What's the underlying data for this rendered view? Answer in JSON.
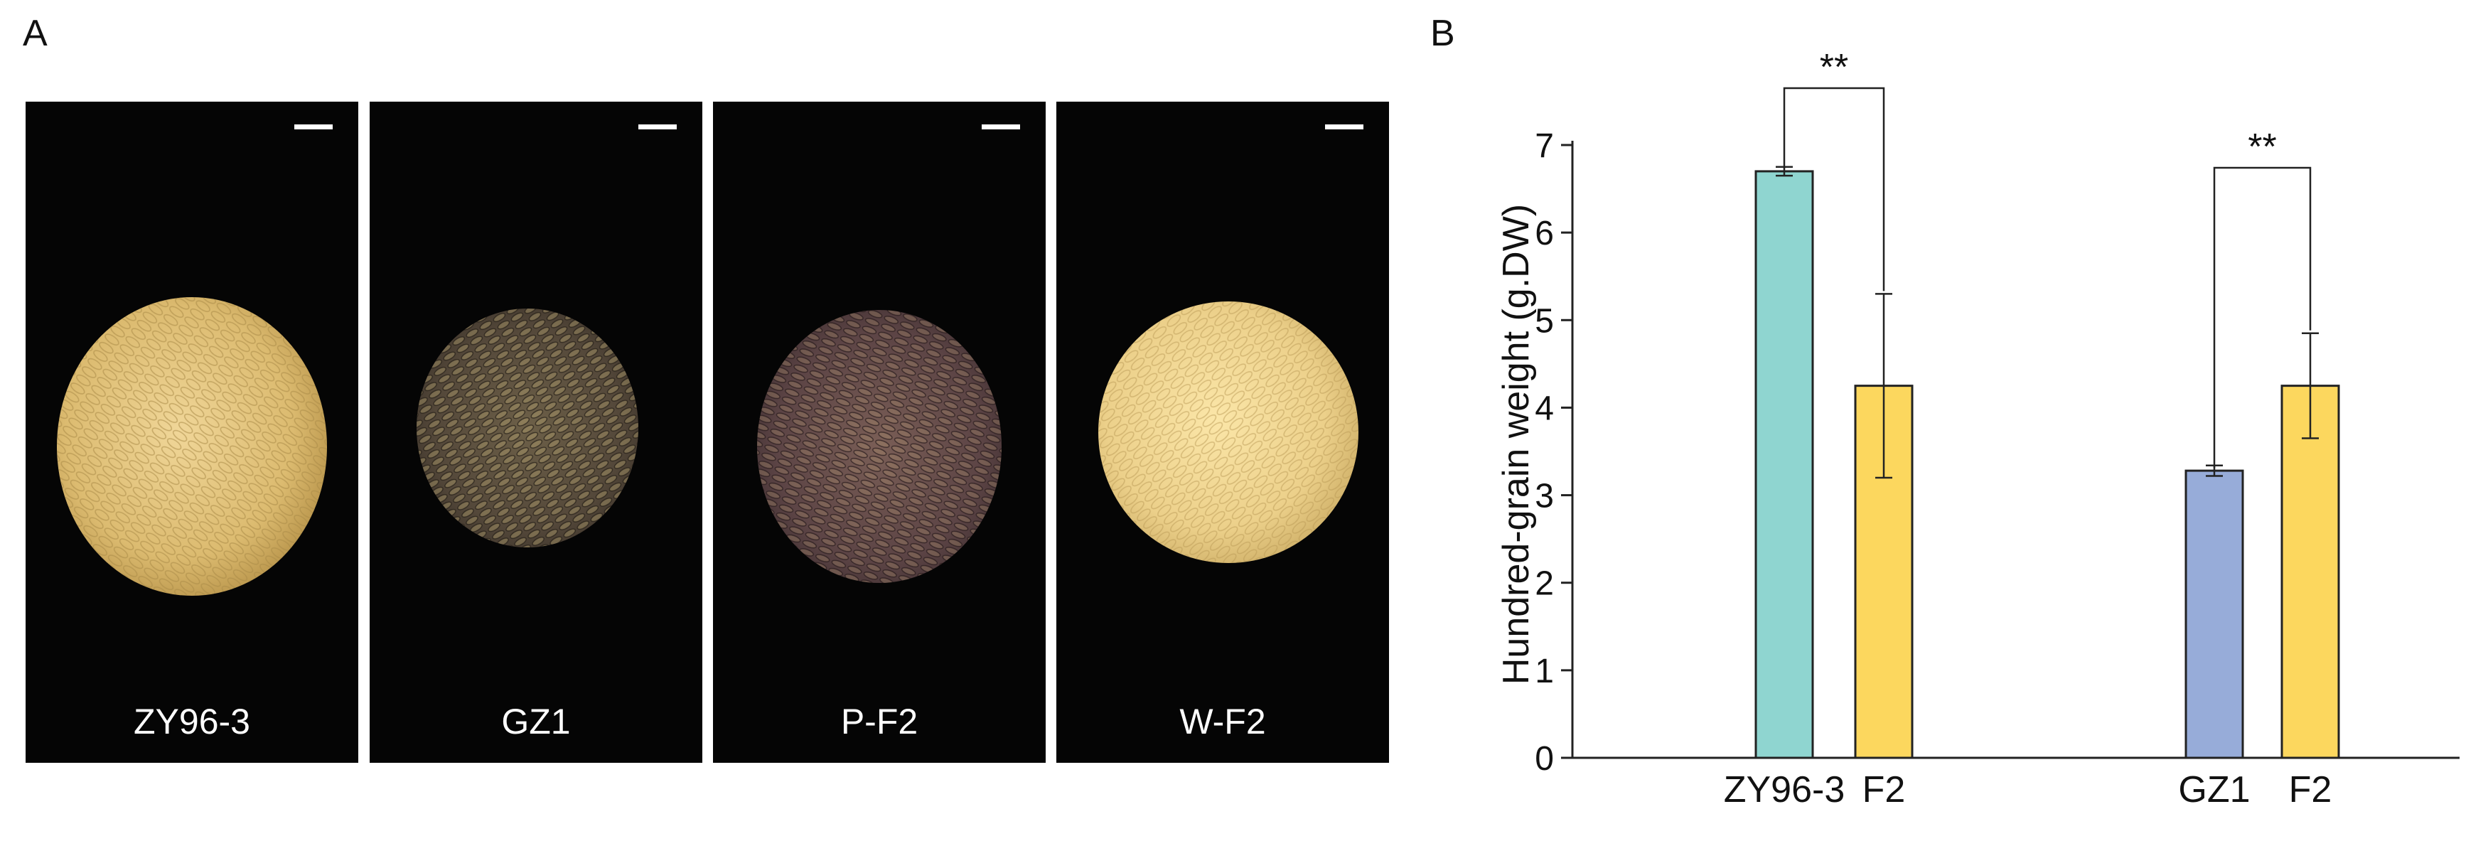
{
  "panel_a": {
    "label": "A",
    "photos": [
      {
        "name": "ZY96-3",
        "grain_color": "tan"
      },
      {
        "name": "GZ1",
        "grain_color": "dark-mixed"
      },
      {
        "name": "P-F2",
        "grain_color": "purple-mixed"
      },
      {
        "name": "W-F2",
        "grain_color": "pale-yellow"
      }
    ]
  },
  "chart_data": {
    "type": "bar",
    "panel_label": "B",
    "ylabel": "Hundred-grain weight (g.DW)",
    "ylim": [
      0,
      7
    ],
    "yticks": [
      "0",
      "1",
      "2",
      "3",
      "4",
      "5",
      "6",
      "7"
    ],
    "bars": [
      {
        "label": "ZY96-3",
        "value": 6.7,
        "error": 0.05,
        "color": "#8fd5d0",
        "group": 0
      },
      {
        "label": "F2",
        "value": 4.25,
        "error": 1.05,
        "color": "#fcd75e",
        "group": 0
      },
      {
        "label": "GZ1",
        "value": 3.28,
        "error": 0.06,
        "color": "#97acd9",
        "group": 1
      },
      {
        "label": "F2",
        "value": 4.25,
        "error": 0.6,
        "color": "#fcd75e",
        "group": 1
      }
    ],
    "significance": [
      {
        "bars": [
          0,
          1
        ],
        "label": "**"
      },
      {
        "bars": [
          2,
          3
        ],
        "label": "**"
      }
    ]
  }
}
